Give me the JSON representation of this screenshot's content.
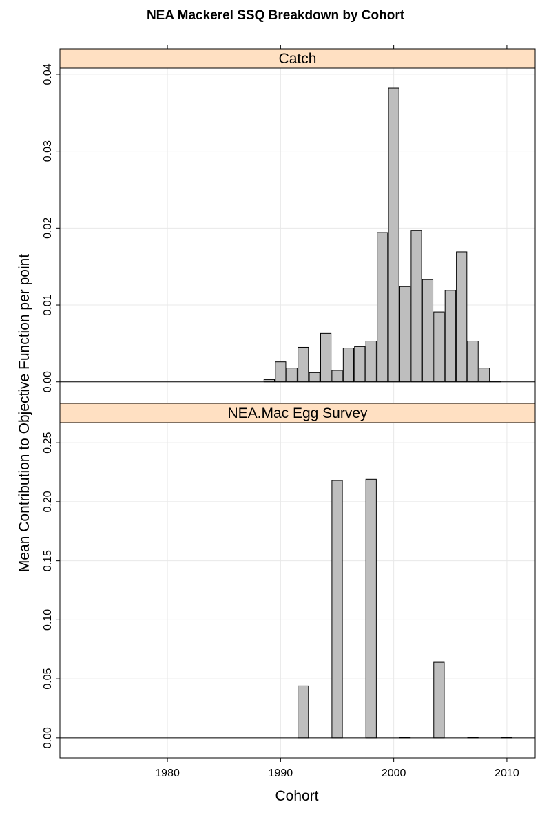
{
  "title": "NEA Mackerel SSQ Breakdown by Cohort",
  "xlabel": "Cohort",
  "ylabel": "Mean Contribution to Objective Function per point",
  "colors": {
    "strip": "#ffe0c2",
    "bar_fill": "#bebebe",
    "bar_stroke": "#000000",
    "grid": "#e8e8e8"
  },
  "chart_data": [
    {
      "type": "bar",
      "panel": "Catch",
      "x": [
        1989,
        1990,
        1991,
        1992,
        1993,
        1994,
        1995,
        1996,
        1997,
        1998,
        1999,
        2000,
        2001,
        2002,
        2003,
        2004,
        2005,
        2006,
        2007,
        2008,
        2009
      ],
      "values": [
        0.0003,
        0.0026,
        0.0018,
        0.0045,
        0.0012,
        0.0063,
        0.0015,
        0.0044,
        0.0046,
        0.0053,
        0.0194,
        0.0382,
        0.0124,
        0.0197,
        0.0133,
        0.0091,
        0.0119,
        0.0169,
        0.0053,
        0.0018,
        0.0001
      ],
      "yticks": [
        "0.00",
        "0.01",
        "0.02",
        "0.03",
        "0.04"
      ],
      "ytick_values": [
        0,
        0.01,
        0.02,
        0.03,
        0.04
      ],
      "ylim": [
        -0.0028,
        0.0408
      ],
      "xlim": [
        1970.5,
        2012.5
      ],
      "grid": true
    },
    {
      "type": "bar",
      "panel": "NEA.Mac Egg Survey",
      "x": [
        1992,
        1995,
        1998,
        2001,
        2004,
        2007,
        2010
      ],
      "values": [
        0.044,
        0.218,
        0.219,
        0.0005,
        0.064,
        0.0005,
        0.0005
      ],
      "yticks": [
        "0.00",
        "0.05",
        "0.10",
        "0.15",
        "0.20",
        "0.25"
      ],
      "ytick_values": [
        0,
        0.05,
        0.1,
        0.15,
        0.2,
        0.25
      ],
      "ylim": [
        -0.017,
        0.267
      ],
      "xlim": [
        1970.5,
        2012.5
      ],
      "grid": true
    }
  ],
  "xaxis": {
    "ticks": [
      "1980",
      "1990",
      "2000",
      "2010"
    ],
    "tick_values": [
      1980,
      1990,
      2000,
      2010
    ]
  }
}
